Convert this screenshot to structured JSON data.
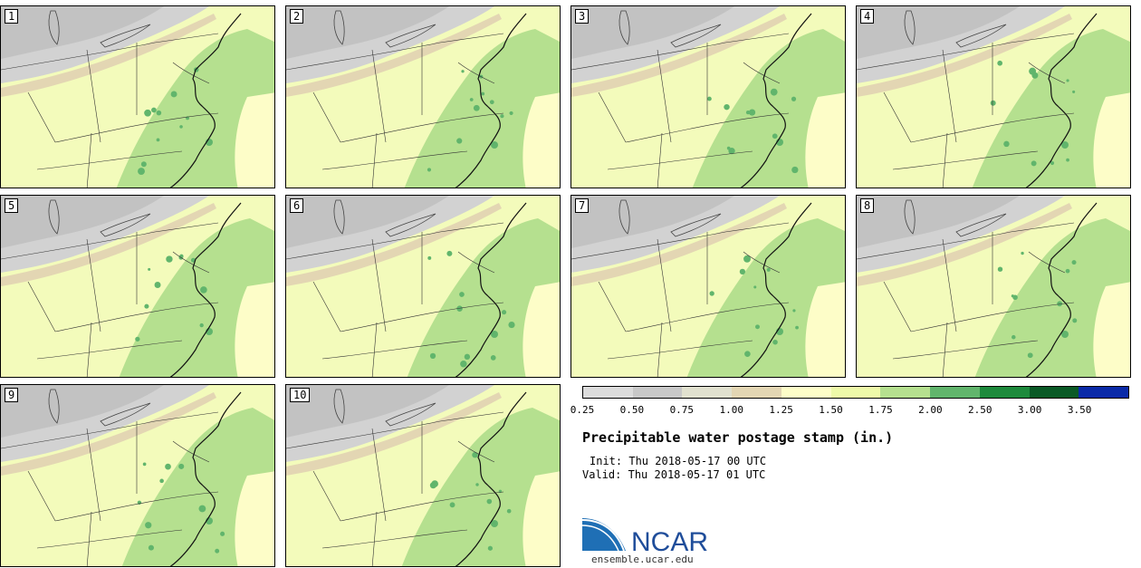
{
  "figure": {
    "title": "Precipitable water postage stamp (in.)",
    "init_label": "Init:",
    "init_value": "Thu 2018-05-17 00 UTC",
    "valid_label": "Valid:",
    "valid_value": "Thu 2018-05-17 01 UTC"
  },
  "members": [
    "1",
    "2",
    "3",
    "4",
    "5",
    "6",
    "7",
    "8",
    "9",
    "10"
  ],
  "colorbar": {
    "units": "in.",
    "colors": [
      "#dcdcdc",
      "#c8c8c8",
      "#e1e1cf",
      "#e3d6b3",
      "#fdfdc8",
      "#eef9a9",
      "#b5e08f",
      "#61b56c",
      "#1d8a3c",
      "#0a5a26",
      "#0a2aa8"
    ],
    "ticks": [
      "0.25",
      "0.50",
      "0.75",
      "1.00",
      "1.25",
      "1.50",
      "1.75",
      "2.00",
      "2.50",
      "3.00",
      "3.50"
    ]
  },
  "logo": {
    "text": "NCAR",
    "url": "ensemble.ucar.edu",
    "brand_color": "#1f4d9a"
  }
}
